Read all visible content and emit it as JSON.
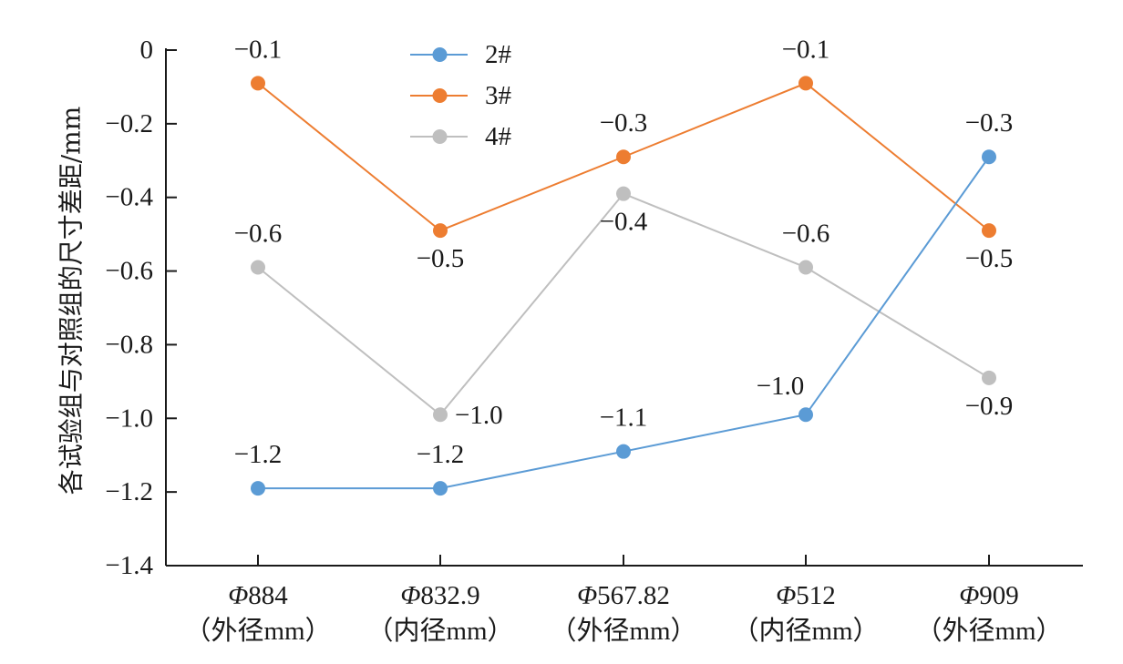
{
  "chart_data": {
    "type": "line",
    "title": "",
    "xlabel": "",
    "ylabel": "各试验组与对照组的尺寸差距/mm",
    "ylim": [
      -1.4,
      0
    ],
    "yticks": [
      0,
      -0.2,
      -0.4,
      -0.6,
      -0.8,
      -1.0,
      -1.2,
      -1.4
    ],
    "ytick_labels": [
      "0",
      "−0.2",
      "−0.4",
      "−0.6",
      "−0.8",
      "−1.0",
      "−1.2",
      "−1.4"
    ],
    "grid": false,
    "legend_position": "top-center",
    "categories": [
      {
        "symbol": "Φ",
        "value": "884",
        "note": "（外径mm）"
      },
      {
        "symbol": "Φ",
        "value": "832.9",
        "note": "（内径mm）"
      },
      {
        "symbol": "Φ",
        "value": "567.82",
        "note": "（外径mm）"
      },
      {
        "symbol": "Φ",
        "value": "512",
        "note": "（内径mm）"
      },
      {
        "symbol": "Φ",
        "value": "909",
        "note": "（外径mm）"
      }
    ],
    "series": [
      {
        "name": "2#",
        "color": "#5b9bd5",
        "values": [
          -1.19,
          -1.19,
          -1.09,
          -0.99,
          -0.29
        ],
        "labels": [
          "−1.2",
          "−1.2",
          "−1.1",
          "−1.0",
          "−0.3"
        ],
        "label_positions": [
          "above",
          "above",
          "above",
          "above-left",
          "above"
        ]
      },
      {
        "name": "3#",
        "color": "#ed7d31",
        "values": [
          -0.09,
          -0.49,
          -0.29,
          -0.09,
          -0.49
        ],
        "labels": [
          "−0.1",
          "−0.5",
          "−0.3",
          "−0.1",
          "−0.5"
        ],
        "label_positions": [
          "above",
          "below",
          "above",
          "above",
          "below"
        ]
      },
      {
        "name": "4#",
        "color": "#bfbfbf",
        "values": [
          -0.59,
          -0.99,
          -0.39,
          -0.59,
          -0.89
        ],
        "labels": [
          "−0.6",
          "−1.0",
          "−0.4",
          "−0.6",
          "−0.9"
        ],
        "label_positions": [
          "above",
          "right",
          "below",
          "above",
          "below"
        ]
      }
    ]
  }
}
